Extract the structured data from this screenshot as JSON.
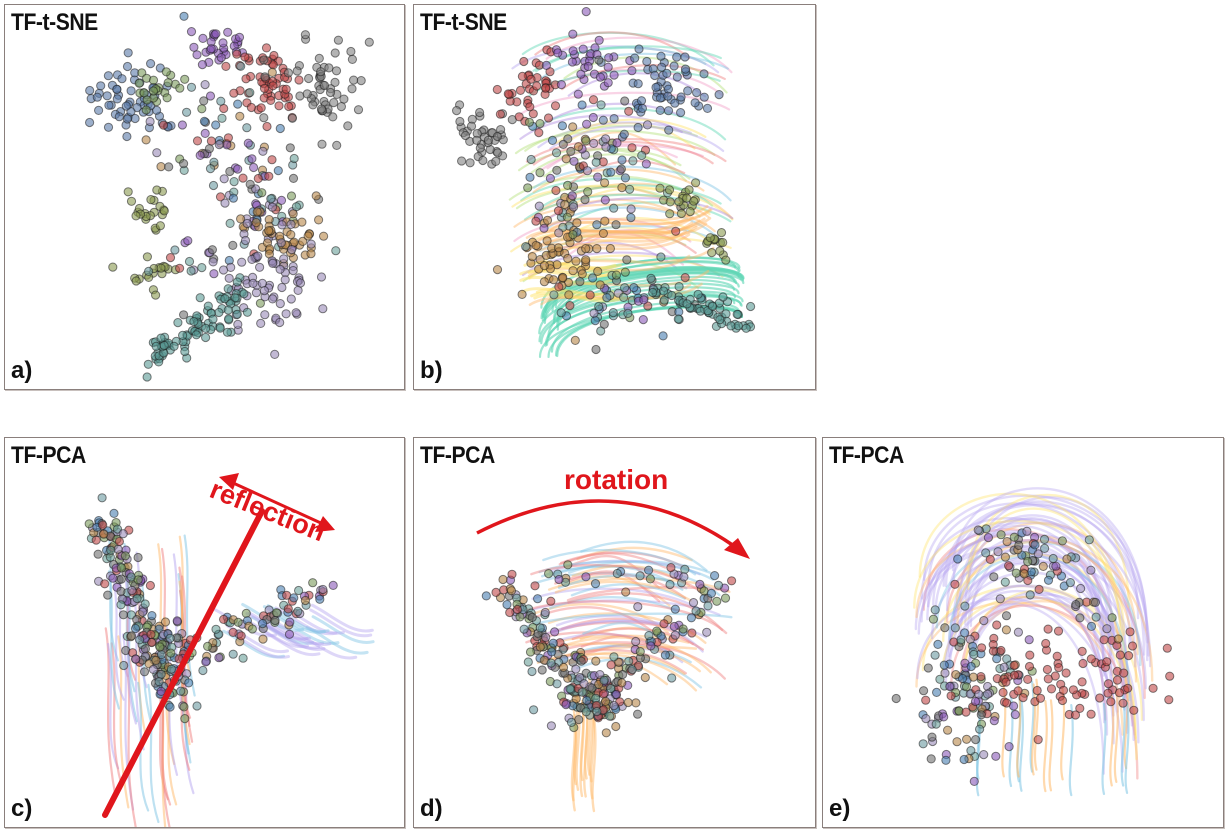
{
  "panels": [
    {
      "id": "a",
      "title": "TF-t-SNE",
      "label": "a)"
    },
    {
      "id": "b",
      "title": "TF-t-SNE",
      "label": "b)"
    },
    {
      "id": "c",
      "title": "TF-PCA",
      "label": "c)",
      "annotation": "reflection"
    },
    {
      "id": "d",
      "title": "TF-PCA",
      "label": "d)",
      "annotation": "rotation"
    },
    {
      "id": "e",
      "title": "TF-PCA",
      "label": "e)"
    }
  ],
  "colors": {
    "annotation": "#e0161c",
    "cluster_palette": [
      "#4a7fb0",
      "#7a9a5a",
      "#c04848",
      "#8a5ab8",
      "#6a9aa0",
      "#b8874a",
      "#9a8ab8",
      "#6aa09a",
      "#707070"
    ],
    "trail_palette": [
      "#b6a6ef",
      "#ffb96a",
      "#7ec4e4",
      "#f08080",
      "#ffe36a",
      "#5ed6b4",
      "#b08ce0",
      "#f2a0c8",
      "#b4e07a"
    ]
  }
}
